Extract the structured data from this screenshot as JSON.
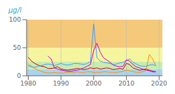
{
  "chart_data": {
    "type": "line",
    "title": "µg/l",
    "x": [
      1980,
      1981,
      1982,
      1983,
      1984,
      1985,
      1986,
      1987,
      1988,
      1989,
      1990,
      1991,
      1992,
      1993,
      1994,
      1995,
      1996,
      1997,
      1998,
      1999,
      2000,
      2001,
      2002,
      2003,
      2004,
      2005,
      2006,
      2007,
      2008,
      2009,
      2010,
      2011,
      2012,
      2013,
      2014,
      2015,
      2016,
      2017,
      2018,
      2019
    ],
    "series": [
      {
        "color": "#cc0000",
        "values": [
          33,
          26,
          22,
          19,
          17,
          16,
          13,
          13,
          14,
          16,
          12,
          11,
          10,
          11,
          12,
          13,
          12,
          11,
          12,
          14,
          13,
          14,
          12,
          13,
          14,
          13,
          11,
          12,
          13,
          12,
          22,
          20,
          14,
          12,
          10,
          11,
          12,
          10,
          8,
          7
        ]
      },
      {
        "color": "#ff8c00",
        "values": [
          20,
          17,
          13,
          10,
          8,
          6,
          5,
          5,
          6,
          5,
          5,
          5,
          6,
          6,
          6,
          7,
          6,
          6,
          7,
          7,
          6,
          6,
          6,
          7,
          7,
          6,
          6,
          6,
          7,
          8,
          10,
          9,
          8,
          6,
          6,
          7,
          10,
          38,
          30,
          18
        ]
      },
      {
        "color": "#4499ff",
        "values": [
          18,
          16,
          15,
          17,
          18,
          20,
          21,
          20,
          18,
          20,
          22,
          20,
          19,
          20,
          22,
          22,
          21,
          20,
          22,
          25,
          92,
          32,
          26,
          24,
          23,
          22,
          20,
          21,
          23,
          24,
          28,
          30,
          24,
          21,
          18,
          17,
          17,
          19,
          20,
          18
        ]
      },
      {
        "color": "#cc00cc",
        "values": [
          null,
          null,
          null,
          null,
          null,
          null,
          35,
          30,
          14,
          12,
          10,
          9,
          8,
          8,
          9,
          10,
          12,
          14,
          17,
          20,
          45,
          58,
          42,
          32,
          28,
          24,
          19,
          17,
          16,
          17,
          28,
          26,
          20,
          16,
          14,
          12,
          10,
          9,
          7,
          7
        ]
      }
    ],
    "bands": [
      {
        "ymin": 0,
        "ymax": 12,
        "color": "#aad4ee"
      },
      {
        "ymin": 12,
        "ymax": 25,
        "color": "#c8ecb0"
      },
      {
        "ymin": 25,
        "ymax": 50,
        "color": "#f5f5a0"
      },
      {
        "ymin": 50,
        "ymax": 105,
        "color": "#f5c97a"
      }
    ],
    "xlim": [
      1979.5,
      2021
    ],
    "xticks": [
      1980,
      1990,
      2000,
      2010,
      2020
    ],
    "ylim": [
      0,
      100
    ],
    "yticks": [
      0,
      50,
      100
    ],
    "grid": "x"
  }
}
